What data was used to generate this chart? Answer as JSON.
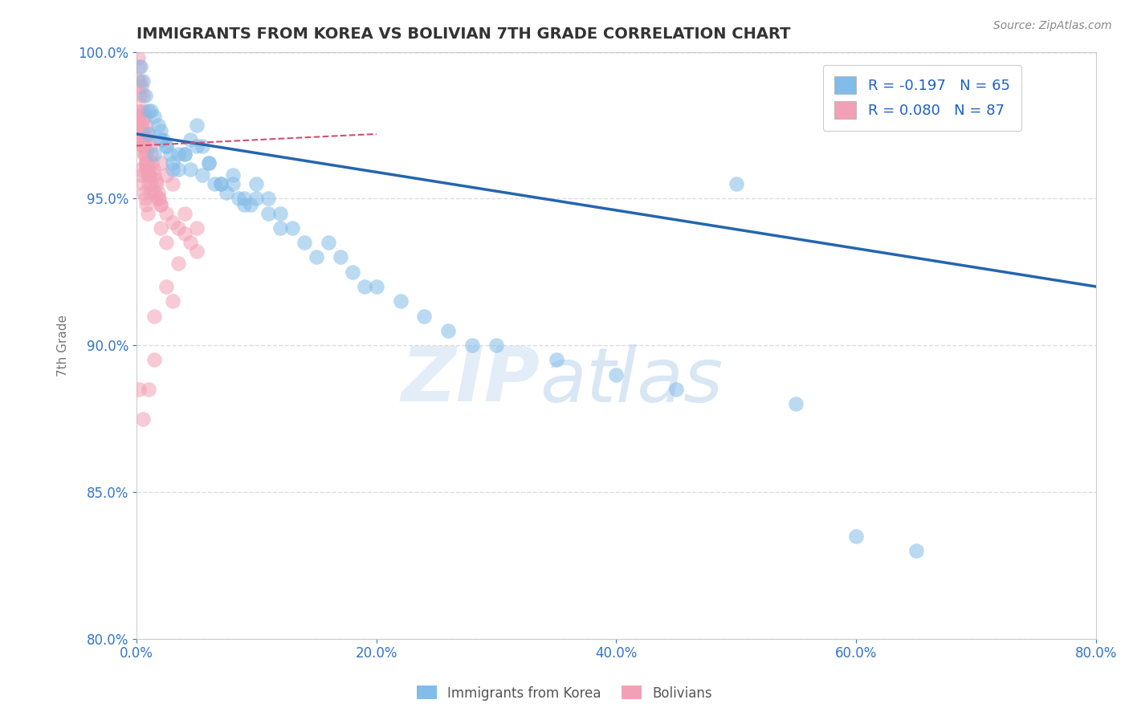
{
  "title": "IMMIGRANTS FROM KOREA VS BOLIVIAN 7TH GRADE CORRELATION CHART",
  "source_text": "Source: ZipAtlas.com",
  "ylabel": "7th Grade",
  "xlim": [
    0.0,
    80.0
  ],
  "ylim": [
    80.0,
    100.0
  ],
  "xticks": [
    0.0,
    20.0,
    40.0,
    60.0,
    80.0
  ],
  "yticks": [
    80.0,
    85.0,
    90.0,
    95.0,
    100.0
  ],
  "r_korea": -0.197,
  "n_korea": 65,
  "r_bolivia": 0.08,
  "n_bolivia": 87,
  "korea_color": "#82BCE8",
  "bolivia_color": "#F2A0B5",
  "korea_trend_color": "#2565AE",
  "bolivia_trend_color": "#D05070",
  "watermark_zip": "ZIP",
  "watermark_atlas": "atlas",
  "legend_korea": "Immigrants from Korea",
  "legend_bolivia": "Bolivians",
  "korea_x": [
    0.3,
    0.5,
    0.7,
    1.0,
    1.2,
    1.5,
    1.8,
    2.0,
    2.2,
    2.5,
    2.8,
    3.0,
    3.5,
    4.0,
    4.5,
    5.0,
    5.5,
    6.0,
    7.0,
    8.0,
    9.0,
    10.0,
    11.0,
    12.0,
    13.0,
    14.0,
    15.0,
    16.0,
    17.0,
    18.0,
    19.0,
    20.0,
    22.0,
    24.0,
    26.0,
    28.0,
    30.0,
    35.0,
    40.0,
    45.0,
    50.0,
    55.0,
    60.0,
    65.0,
    1.5,
    2.0,
    3.0,
    4.0,
    5.0,
    6.0,
    7.0,
    8.0,
    9.0,
    10.0,
    11.0,
    12.0,
    1.0,
    2.5,
    3.5,
    4.5,
    5.5,
    6.5,
    7.5,
    8.5,
    9.5
  ],
  "korea_y": [
    99.5,
    99.0,
    98.5,
    98.0,
    98.0,
    97.8,
    97.5,
    97.3,
    97.0,
    96.8,
    96.5,
    96.2,
    96.0,
    96.5,
    97.0,
    97.5,
    96.8,
    96.2,
    95.5,
    95.8,
    95.0,
    95.5,
    95.0,
    94.5,
    94.0,
    93.5,
    93.0,
    93.5,
    93.0,
    92.5,
    92.0,
    92.0,
    91.5,
    91.0,
    90.5,
    90.0,
    90.0,
    89.5,
    89.0,
    88.5,
    95.5,
    88.0,
    83.5,
    83.0,
    96.5,
    97.0,
    96.0,
    96.5,
    96.8,
    96.2,
    95.5,
    95.5,
    94.8,
    95.0,
    94.5,
    94.0,
    97.2,
    96.8,
    96.5,
    96.0,
    95.8,
    95.5,
    95.2,
    95.0,
    94.8
  ],
  "bolivia_x": [
    0.1,
    0.2,
    0.3,
    0.4,
    0.5,
    0.6,
    0.7,
    0.8,
    0.9,
    1.0,
    1.1,
    1.2,
    1.3,
    1.4,
    1.5,
    1.6,
    1.7,
    1.8,
    1.9,
    2.0,
    0.15,
    0.25,
    0.35,
    0.45,
    0.55,
    0.65,
    0.75,
    0.85,
    0.95,
    1.05,
    0.1,
    0.2,
    0.3,
    0.4,
    0.5,
    0.6,
    0.7,
    0.8,
    0.9,
    1.0,
    1.2,
    1.5,
    1.8,
    2.0,
    2.5,
    3.0,
    3.5,
    4.0,
    4.5,
    5.0,
    0.2,
    0.3,
    0.4,
    0.5,
    0.6,
    0.7,
    0.8,
    0.9,
    1.0,
    1.1,
    0.15,
    0.25,
    0.35,
    0.45,
    0.55,
    2.0,
    2.5,
    3.0,
    4.0,
    5.0,
    0.3,
    0.4,
    0.5,
    0.6,
    0.7,
    0.8,
    0.9,
    2.0,
    2.5,
    3.5,
    0.2,
    1.5,
    3.0,
    0.5,
    1.0,
    1.5,
    2.5
  ],
  "bolivia_y": [
    99.8,
    99.5,
    99.0,
    98.8,
    98.5,
    98.0,
    97.8,
    97.5,
    97.2,
    97.0,
    96.8,
    96.5,
    96.2,
    96.0,
    95.8,
    95.6,
    95.5,
    95.2,
    95.0,
    94.8,
    99.0,
    98.5,
    98.0,
    97.5,
    97.2,
    96.8,
    96.5,
    96.2,
    96.0,
    95.8,
    98.0,
    97.8,
    97.5,
    97.2,
    97.0,
    96.8,
    96.5,
    96.2,
    96.0,
    95.8,
    95.5,
    95.2,
    95.0,
    94.8,
    94.5,
    94.2,
    94.0,
    93.8,
    93.5,
    93.2,
    97.5,
    97.2,
    97.0,
    96.8,
    96.5,
    96.2,
    96.0,
    95.8,
    95.5,
    95.2,
    97.8,
    97.5,
    97.2,
    97.0,
    96.8,
    96.2,
    95.8,
    95.5,
    94.5,
    94.0,
    96.0,
    95.8,
    95.5,
    95.2,
    95.0,
    94.8,
    94.5,
    94.0,
    93.5,
    92.8,
    88.5,
    91.0,
    91.5,
    87.5,
    88.5,
    89.5,
    92.0
  ],
  "korea_trend_x0": 0.0,
  "korea_trend_y0": 97.2,
  "korea_trend_x1": 80.0,
  "korea_trend_y1": 92.0,
  "bolivia_trend_x0": 0.0,
  "bolivia_trend_y0": 96.8,
  "bolivia_trend_x1": 20.0,
  "bolivia_trend_y1": 97.2,
  "gray_dash_x0": 0.0,
  "gray_dash_y0": 99.8,
  "gray_dash_x1": 80.0,
  "gray_dash_y1": 100.2
}
